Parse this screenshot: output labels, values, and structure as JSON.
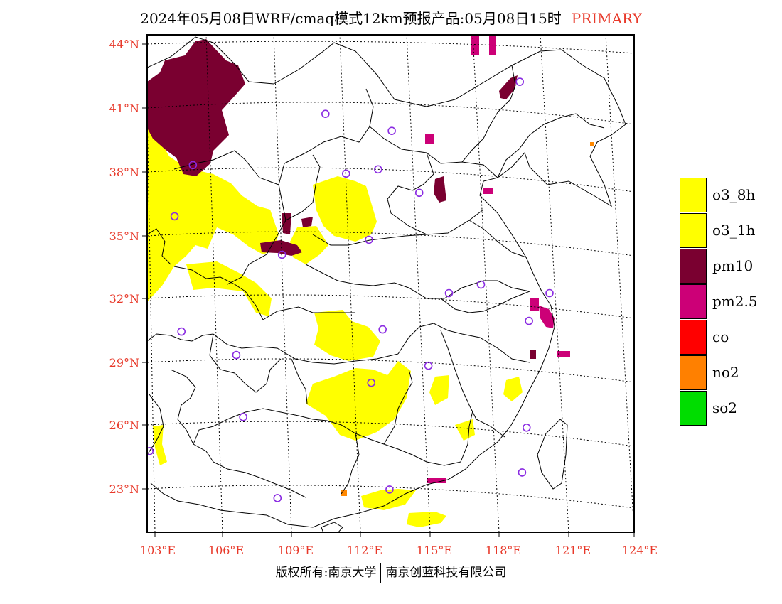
{
  "title": {
    "main": "2024年05月08日WRF/cmaq模式12km预报产品:05月08日15时",
    "tag": "PRIMARY"
  },
  "map": {
    "latitudes": [
      "44°N",
      "41°N",
      "38°N",
      "35°N",
      "32°N",
      "29°N",
      "26°N",
      "23°N"
    ],
    "longitudes": [
      "103°E",
      "106°E",
      "109°E",
      "112°E",
      "115°E",
      "118°E",
      "121°E",
      "124°E"
    ],
    "extent": {
      "lon_min": 102.7,
      "lon_max": 124.0,
      "lat_min": 21.2,
      "lat_max": 44.5
    },
    "station_color": "#8a2be2",
    "stations": [
      [
        119.0,
        42.3
      ],
      [
        110.5,
        40.8
      ],
      [
        113.4,
        40.0
      ],
      [
        104.7,
        38.4
      ],
      [
        111.4,
        38.0
      ],
      [
        112.8,
        38.2
      ],
      [
        114.6,
        37.1
      ],
      [
        103.9,
        36.0
      ],
      [
        112.4,
        34.9
      ],
      [
        108.6,
        34.2
      ],
      [
        115.9,
        32.4
      ],
      [
        117.3,
        32.8
      ],
      [
        120.3,
        32.4
      ],
      [
        119.4,
        31.1
      ],
      [
        104.2,
        30.6
      ],
      [
        113.0,
        30.7
      ],
      [
        106.6,
        29.5
      ],
      [
        115.0,
        29.0
      ],
      [
        112.5,
        28.2
      ],
      [
        106.9,
        26.6
      ],
      [
        119.3,
        26.1
      ],
      [
        102.8,
        25.0
      ],
      [
        108.4,
        22.8
      ],
      [
        113.3,
        23.2
      ],
      [
        119.1,
        24.0
      ]
    ],
    "colors": {
      "o3": "#ffff00",
      "pm10": "#7a0030",
      "pm25": "#cc0077",
      "no2": "#ff8800"
    }
  },
  "legend": [
    {
      "label": "o3_8h",
      "color": "#ffff00"
    },
    {
      "label": "o3_1h",
      "color": "#ffff00"
    },
    {
      "label": "pm10",
      "color": "#7a0030"
    },
    {
      "label": "pm2.5",
      "color": "#cc0077"
    },
    {
      "label": "co",
      "color": "#ff0000"
    },
    {
      "label": "no2",
      "color": "#ff8000"
    },
    {
      "label": "so2",
      "color": "#00dd00"
    }
  ],
  "copyright": {
    "left": "版权所有:南京大学",
    "right": "南京创蓝科技有限公司"
  }
}
